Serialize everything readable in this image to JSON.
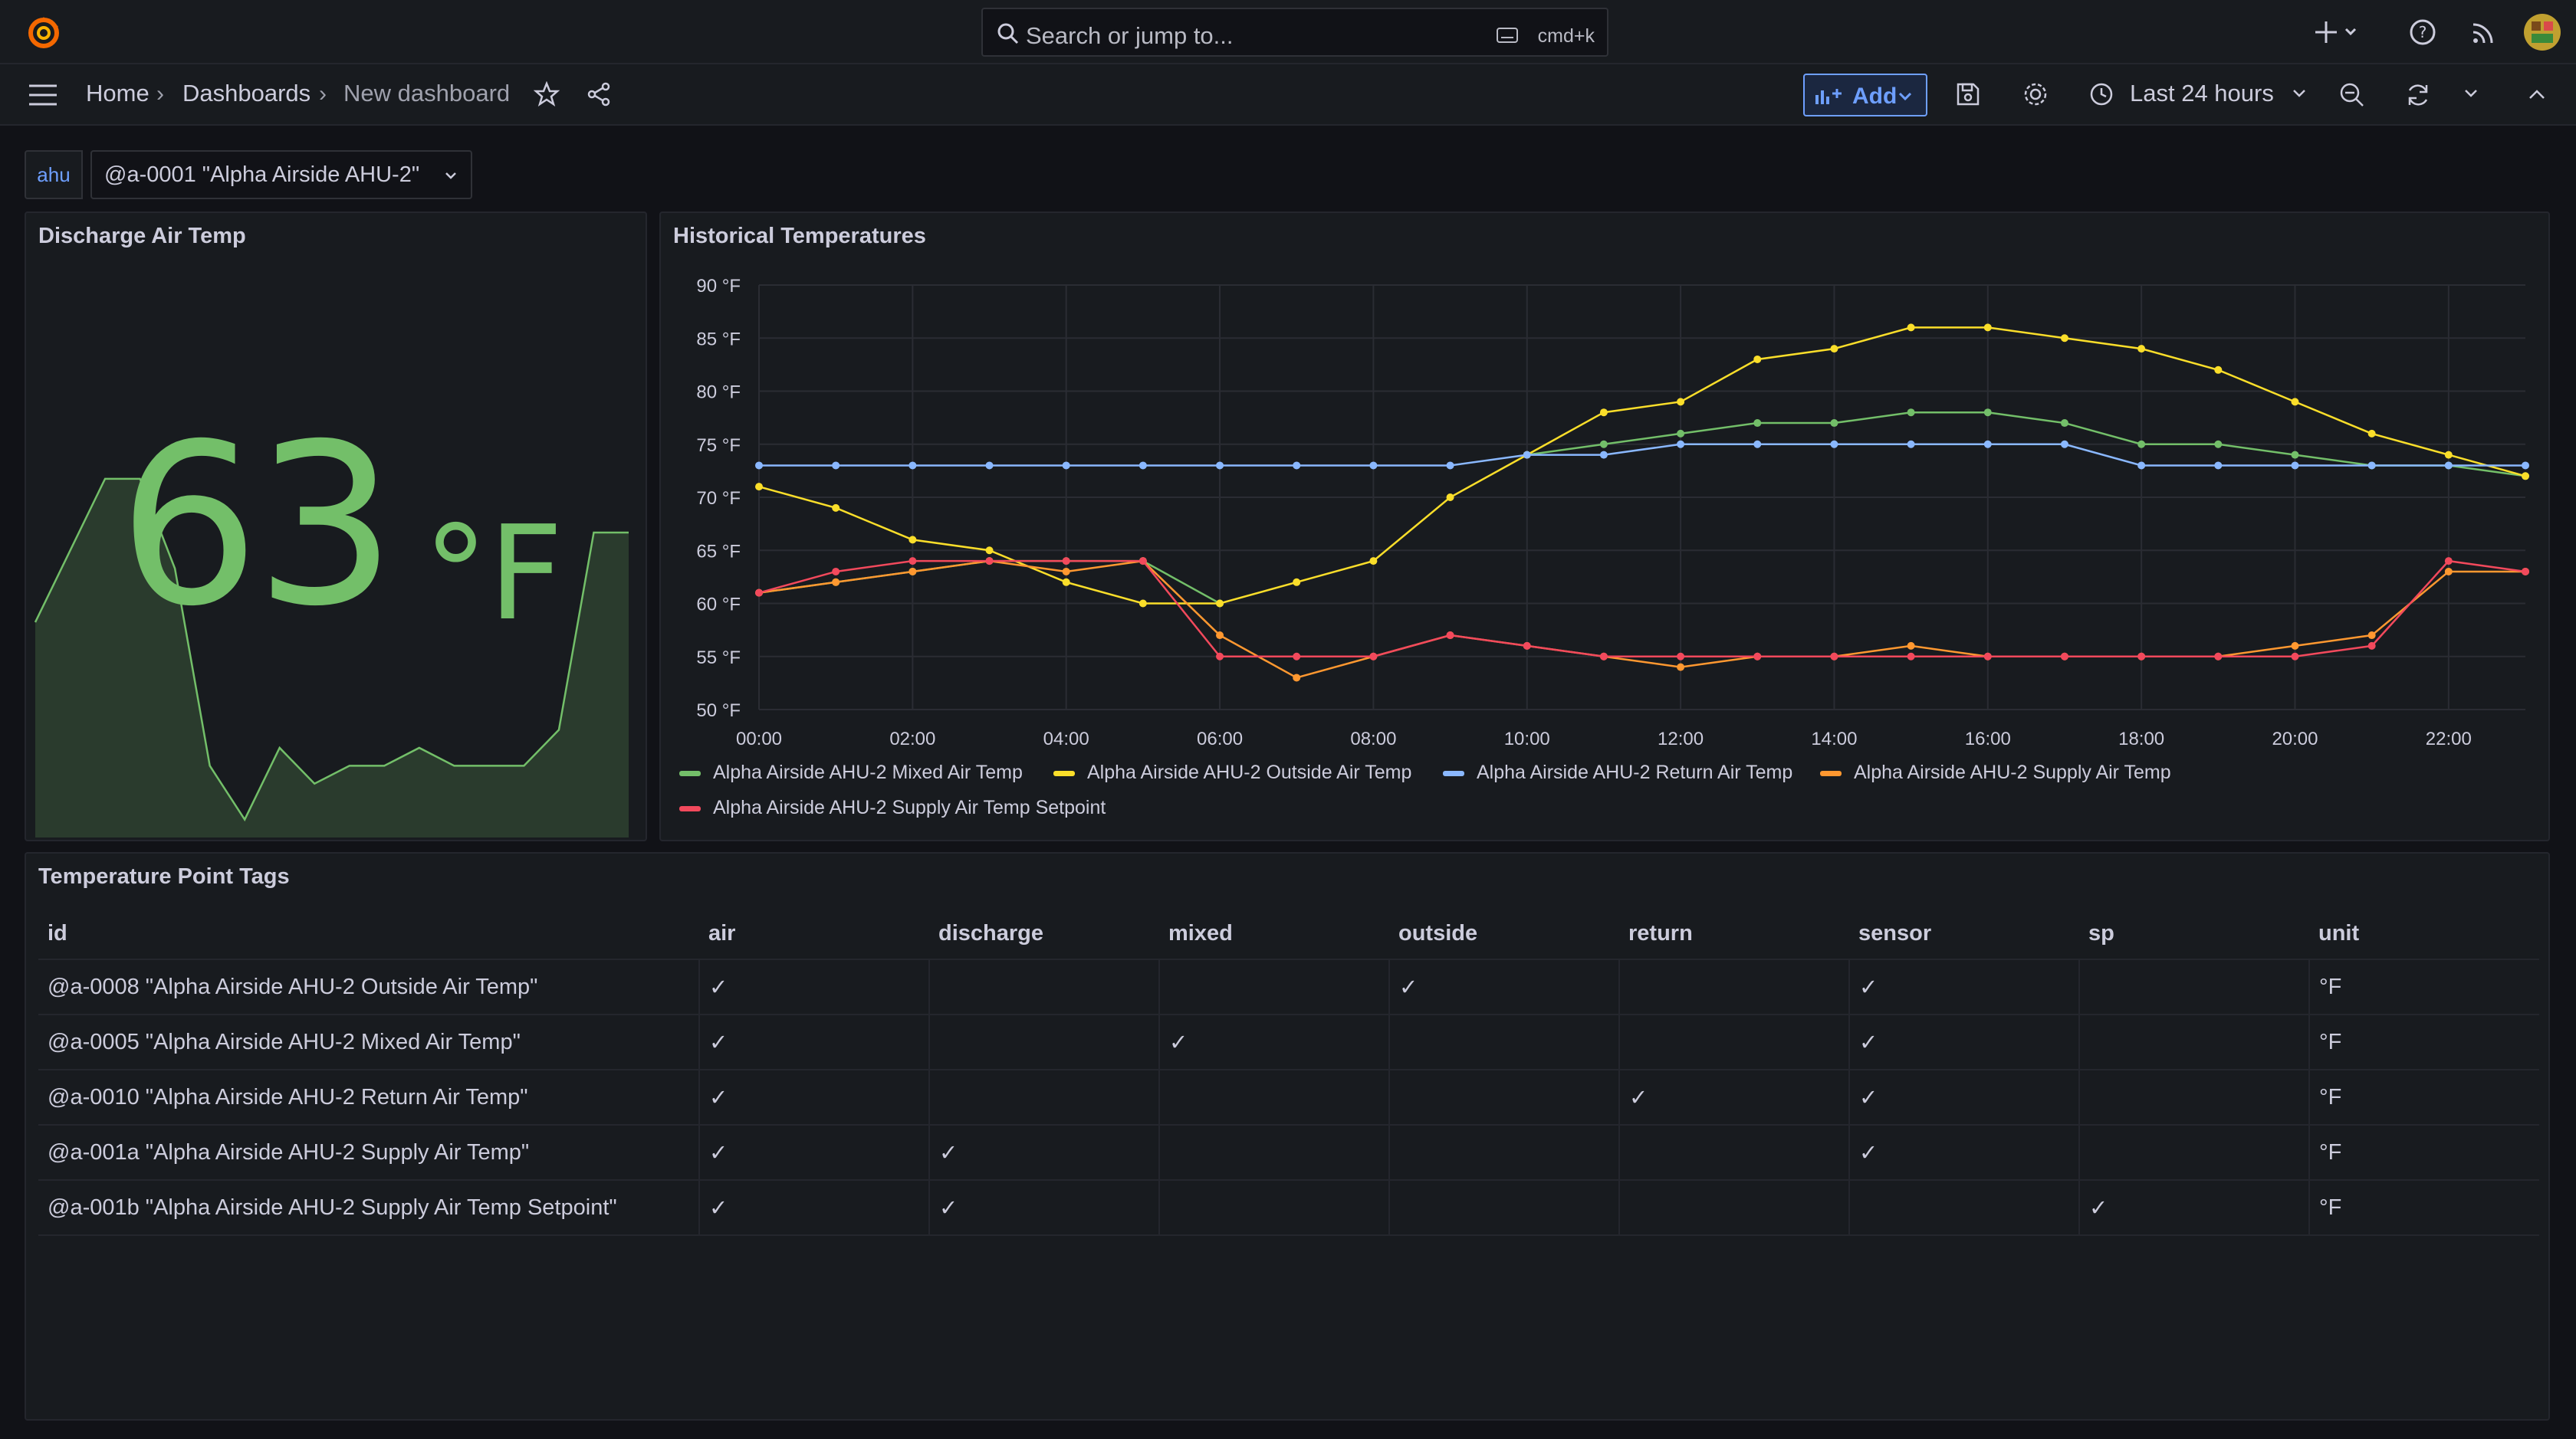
{
  "topbar": {
    "search_placeholder": "Search or jump to...",
    "search_shortcut": "cmd+k",
    "icons": [
      "grafana-logo-icon",
      "plus-icon",
      "help-icon",
      "news-feed-icon",
      "user-avatar"
    ]
  },
  "nav": {
    "breadcrumbs": [
      "Home",
      "Dashboards",
      "New dashboard"
    ],
    "add_label": "Add",
    "time_range": "Last 24 hours"
  },
  "variable": {
    "label": "ahu",
    "value": "@a-0001 \"Alpha Airside AHU-2\""
  },
  "stat_panel": {
    "title": "Discharge Air Temp",
    "value": "63",
    "unit": "°F",
    "color": "#73bf69",
    "sparkline": [
      60,
      64,
      68,
      68,
      63,
      52,
      49,
      53,
      51,
      52,
      52,
      53,
      52,
      52,
      52,
      54,
      65,
      65
    ]
  },
  "chart_panel": {
    "title": "Historical Temperatures"
  },
  "chart_data": {
    "type": "line",
    "x": [
      "00:00",
      "01:00",
      "02:00",
      "03:00",
      "04:00",
      "05:00",
      "06:00",
      "07:00",
      "08:00",
      "09:00",
      "10:00",
      "11:00",
      "12:00",
      "13:00",
      "14:00",
      "15:00",
      "16:00",
      "17:00",
      "18:00",
      "19:00",
      "20:00",
      "21:00",
      "22:00",
      "23:00"
    ],
    "x_ticks": [
      "00:00",
      "02:00",
      "04:00",
      "06:00",
      "08:00",
      "10:00",
      "12:00",
      "14:00",
      "16:00",
      "18:00",
      "20:00",
      "22:00"
    ],
    "y_ticks": [
      "50 °F",
      "55 °F",
      "60 °F",
      "65 °F",
      "70 °F",
      "75 °F",
      "80 °F",
      "85 °F",
      "90 °F"
    ],
    "ylim": [
      50,
      90
    ],
    "grid": true,
    "legend_position": "bottom",
    "series": [
      {
        "name": "Alpha Airside AHU-2 Mixed Air Temp",
        "color": "#73bf69",
        "values": [
          61,
          62,
          63,
          64,
          64,
          64,
          60,
          null,
          null,
          null,
          74,
          75,
          76,
          77,
          77,
          78,
          78,
          77,
          75,
          75,
          74,
          73,
          73,
          72
        ]
      },
      {
        "name": "Alpha Airside AHU-2 Outside Air Temp",
        "color": "#fade2a",
        "values": [
          71,
          69,
          66,
          65,
          62,
          60,
          60,
          62,
          64,
          70,
          74,
          78,
          79,
          83,
          84,
          86,
          86,
          85,
          84,
          82,
          79,
          76,
          74,
          72
        ]
      },
      {
        "name": "Alpha Airside AHU-2 Return Air Temp",
        "color": "#8ab8ff",
        "values": [
          73,
          73,
          73,
          73,
          73,
          73,
          73,
          73,
          73,
          73,
          74,
          74,
          75,
          75,
          75,
          75,
          75,
          75,
          73,
          73,
          73,
          73,
          73,
          73
        ]
      },
      {
        "name": "Alpha Airside AHU-2 Supply Air Temp",
        "color": "#ff9830",
        "values": [
          61,
          62,
          63,
          64,
          63,
          64,
          57,
          53,
          55,
          57,
          56,
          55,
          54,
          55,
          55,
          56,
          55,
          55,
          55,
          55,
          56,
          57,
          63,
          63
        ]
      },
      {
        "name": "Alpha Airside AHU-2 Supply Air Temp Setpoint",
        "color": "#f2495c",
        "values": [
          61,
          63,
          64,
          64,
          64,
          64,
          55,
          55,
          55,
          57,
          56,
          55,
          55,
          55,
          55,
          55,
          55,
          55,
          55,
          55,
          55,
          56,
          64,
          63
        ]
      }
    ]
  },
  "table_panel": {
    "title": "Temperature Point Tags",
    "columns": [
      "id",
      "air",
      "discharge",
      "mixed",
      "outside",
      "return",
      "sensor",
      "sp",
      "unit"
    ],
    "check": "✓",
    "rows": [
      {
        "id": "@a-0008 \"Alpha Airside AHU-2 Outside Air Temp\"",
        "air": "✓",
        "discharge": "",
        "mixed": "",
        "outside": "✓",
        "return": "",
        "sensor": "✓",
        "sp": "",
        "unit": "°F"
      },
      {
        "id": "@a-0005 \"Alpha Airside AHU-2 Mixed Air Temp\"",
        "air": "✓",
        "discharge": "",
        "mixed": "✓",
        "outside": "",
        "return": "",
        "sensor": "✓",
        "sp": "",
        "unit": "°F"
      },
      {
        "id": "@a-0010 \"Alpha Airside AHU-2 Return Air Temp\"",
        "air": "✓",
        "discharge": "",
        "mixed": "",
        "outside": "",
        "return": "✓",
        "sensor": "✓",
        "sp": "",
        "unit": "°F"
      },
      {
        "id": "@a-001a \"Alpha Airside AHU-2 Supply Air Temp\"",
        "air": "✓",
        "discharge": "✓",
        "mixed": "",
        "outside": "",
        "return": "",
        "sensor": "✓",
        "sp": "",
        "unit": "°F"
      },
      {
        "id": "@a-001b \"Alpha Airside AHU-2 Supply Air Temp Setpoint\"",
        "air": "✓",
        "discharge": "✓",
        "mixed": "",
        "outside": "",
        "return": "",
        "sensor": "",
        "sp": "✓",
        "unit": "°F"
      }
    ]
  }
}
